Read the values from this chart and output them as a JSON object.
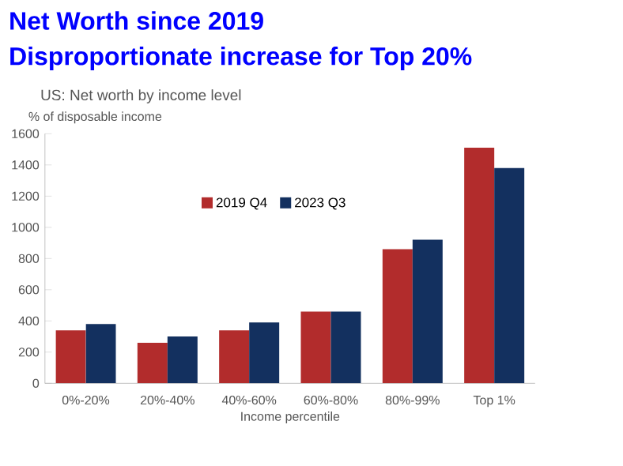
{
  "chart_data": {
    "type": "bar",
    "title": "Net Worth since 2019",
    "subtitle": "Disproportionate increase for Top 20%",
    "annotations": [
      "US: Net worth by income level"
    ],
    "ylabel": "% of disposable income",
    "xlabel": "Income percentile",
    "categories": [
      "0%-20%",
      "20%-40%",
      "40%-60%",
      "60%-80%",
      "80%-99%",
      "Top 1%"
    ],
    "series": [
      {
        "name": "2019 Q4",
        "color": "#b22c2c",
        "values": [
          340,
          260,
          340,
          460,
          860,
          1510
        ]
      },
      {
        "name": "2023 Q3",
        "color": "#13305f",
        "values": [
          380,
          300,
          390,
          460,
          920,
          1380
        ]
      }
    ],
    "ylim": [
      0,
      1600
    ],
    "yticks": [
      0,
      200,
      400,
      600,
      800,
      1000,
      1200,
      1400,
      1600
    ],
    "legend": "top",
    "grid": false
  }
}
